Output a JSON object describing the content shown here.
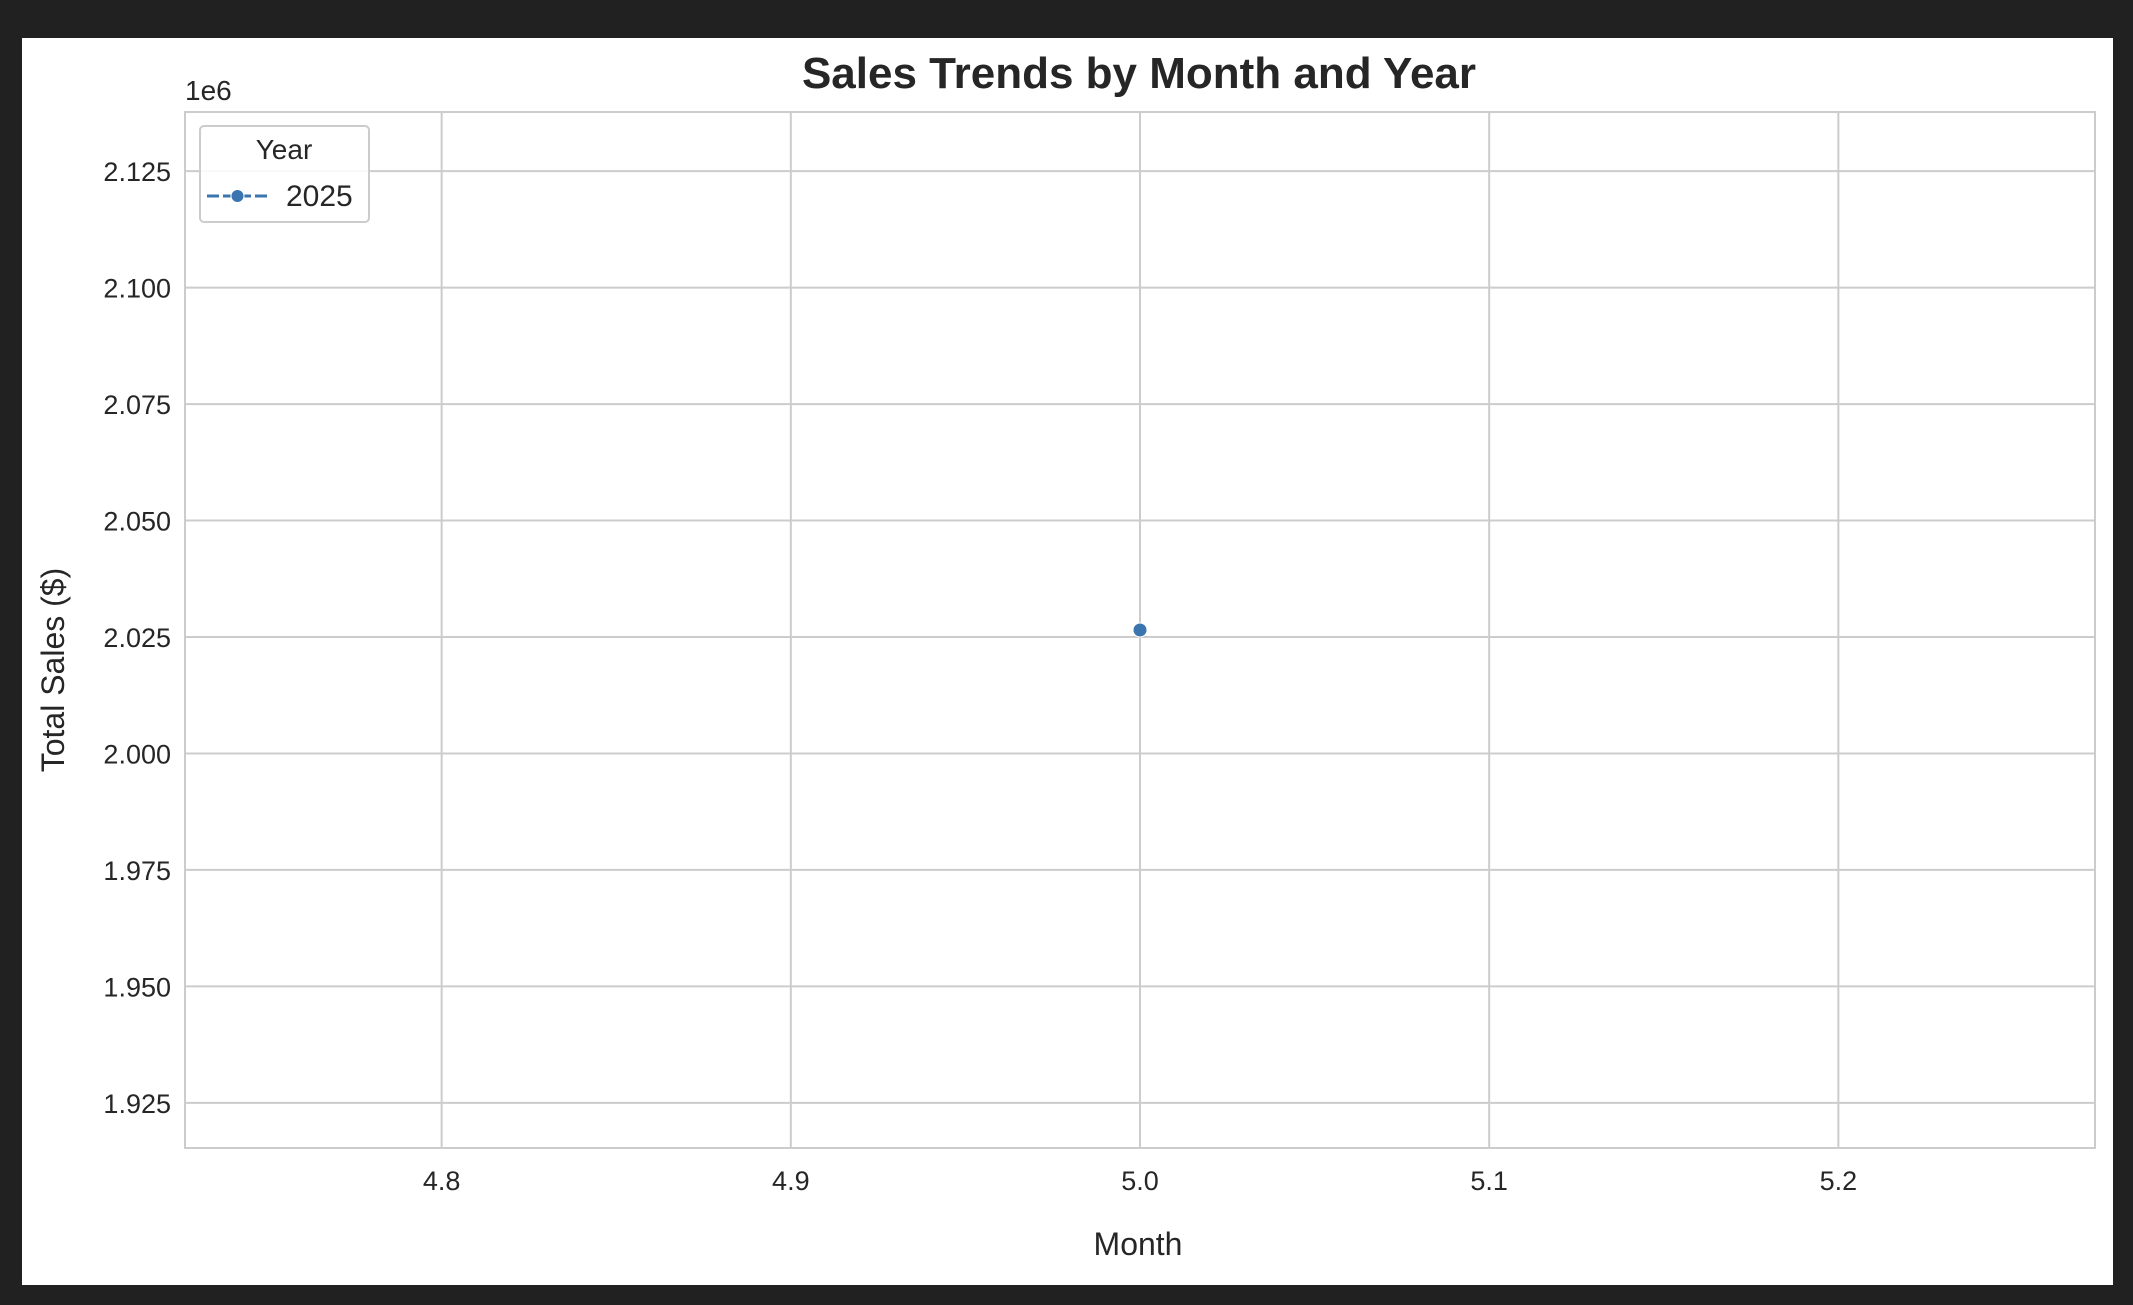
{
  "chart_data": {
    "type": "line",
    "title": "Sales Trends by Month and Year",
    "xlabel": "Month",
    "ylabel": "Total Sales ($)",
    "y_offset_label": "1e6",
    "xlim": [
      4.7265,
      5.2735
    ],
    "ylim": [
      1.9153,
      2.1377
    ],
    "x_ticks": [
      "4.8",
      "4.9",
      "5.0",
      "5.1",
      "5.2"
    ],
    "y_ticks": [
      "1.925",
      "1.950",
      "1.975",
      "2.000",
      "2.025",
      "2.050",
      "2.075",
      "2.100",
      "2.125"
    ],
    "grid": true,
    "legend": {
      "title": "Year",
      "placement": "top-left"
    },
    "series": [
      {
        "name": "2025",
        "color": "#3a75b0",
        "marker": "circle",
        "x": [
          5.0
        ],
        "y": [
          2.0265
        ]
      }
    ]
  }
}
